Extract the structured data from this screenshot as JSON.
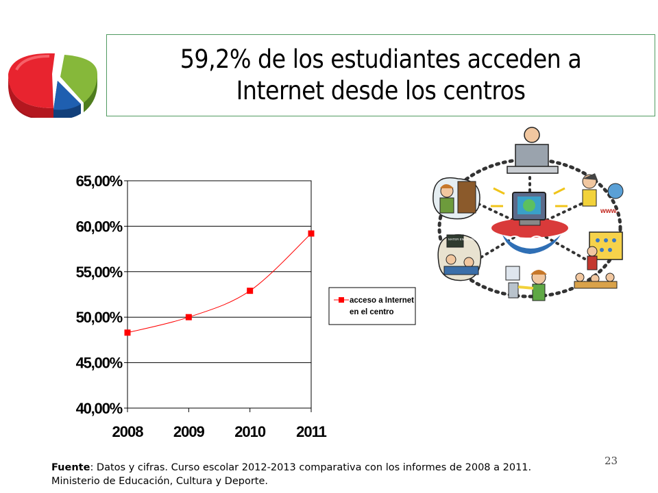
{
  "title": {
    "line1": "59,2% de los estudiantes acceden a",
    "line2": "Internet desde los centros"
  },
  "chart_data": {
    "type": "line",
    "x": [
      "2008",
      "2009",
      "2010",
      "2011"
    ],
    "series": [
      {
        "name": "acceso a Internet en el centro",
        "values": [
          48.3,
          50.0,
          52.9,
          59.2
        ]
      }
    ],
    "ylim": [
      40,
      65
    ],
    "yticks": [
      "40,00%",
      "45,00%",
      "50,00%",
      "55,00%",
      "60,00%",
      "65,00%"
    ],
    "ytick_values": [
      40,
      45,
      50,
      55,
      60,
      65
    ],
    "legend_lines": [
      "acceso a Internet",
      "en el centro"
    ],
    "legend_position": "right",
    "grid": true,
    "colors": {
      "line": "#ff0000",
      "marker": "#ff0000"
    }
  },
  "source": {
    "label": "Fuente",
    "text": ": Datos y cifras. Curso escolar 2012-2013 comparativa con los informes de 2008 a 2011.",
    "line2": "Ministerio de Educación, Cultura y Deporte."
  },
  "slide_number": "23",
  "illustration": {
    "icon": "students-internet-network-icon",
    "label_www": "www.",
    "label_sign": "MATER EN LA TELE"
  },
  "logo": {
    "icon": "pie-chart-logo-icon",
    "colors": [
      "#e8242f",
      "#1f5fb0",
      "#86b83a"
    ]
  }
}
